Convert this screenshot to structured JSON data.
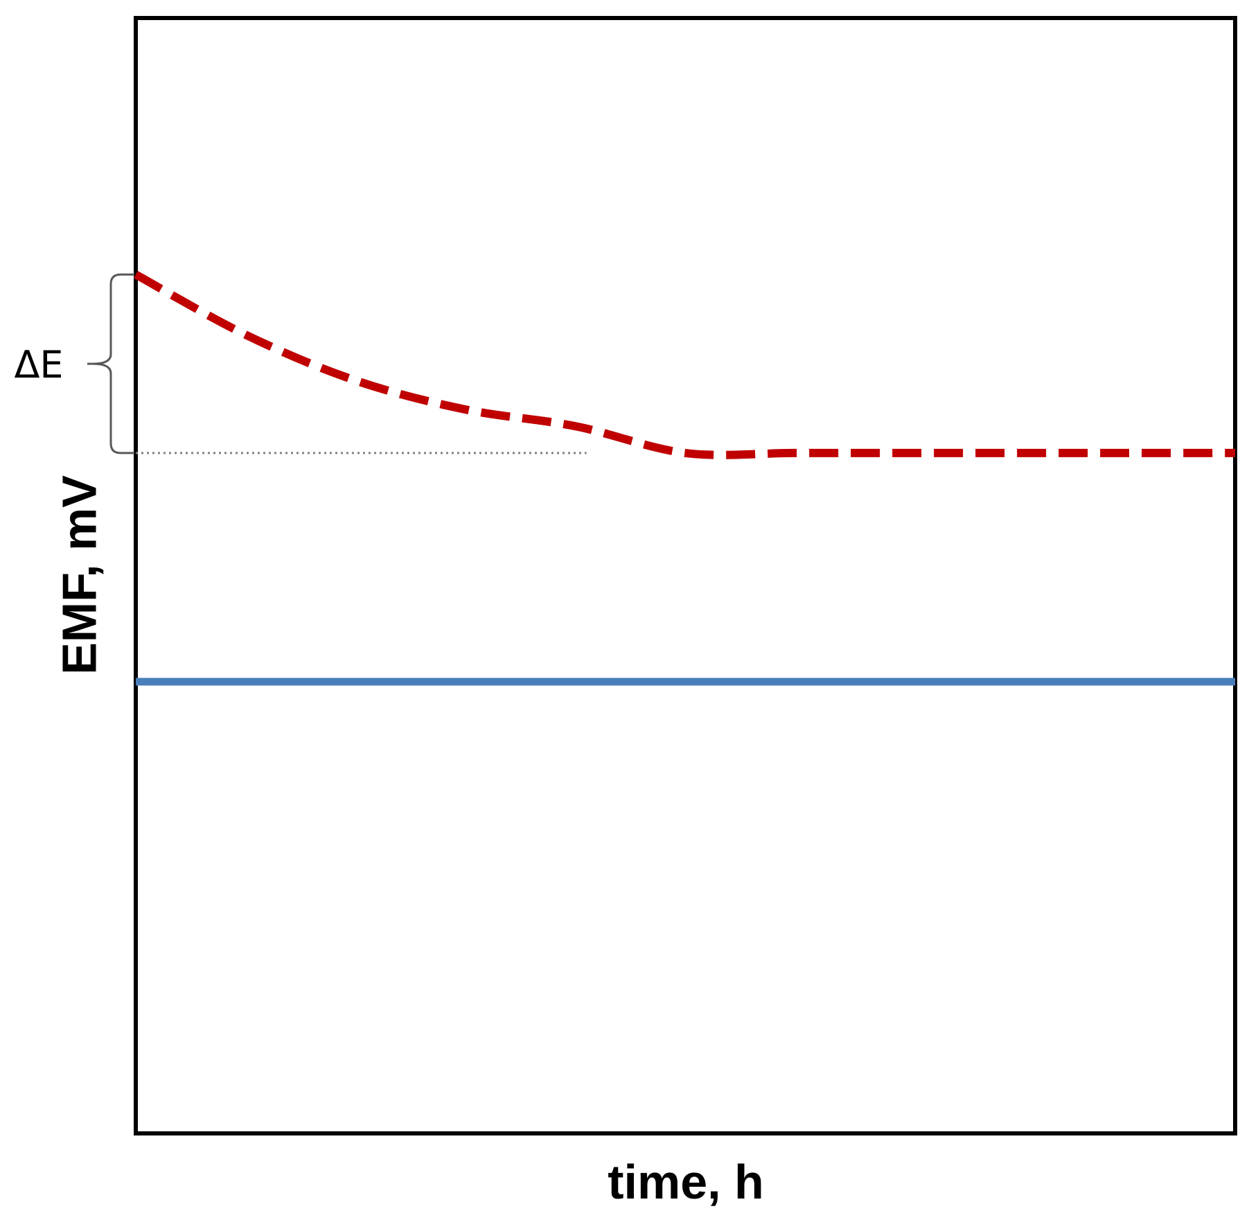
{
  "chart_data": {
    "type": "line",
    "title": "",
    "xlabel": "time, h",
    "ylabel": "EMF, mV",
    "x_ticks_shown": false,
    "y_ticks_shown": false,
    "grid": false,
    "legend": "none",
    "xlim": [
      0,
      10
    ],
    "ylim": [
      0,
      10
    ],
    "series": [
      {
        "style": "dashed",
        "color": "#c00000",
        "x": [
          0,
          1,
          2,
          3,
          4,
          5,
          6,
          7,
          8,
          9,
          10
        ],
        "y": [
          7.7,
          7.16,
          6.75,
          6.49,
          6.34,
          6.1,
          6.1,
          6.1,
          6.1,
          6.1,
          6.1
        ]
      },
      {
        "style": "solid",
        "color": "#4a7ebb",
        "x": [
          0,
          10
        ],
        "y": [
          4.05,
          4.05
        ]
      }
    ],
    "annotations": [
      {
        "text": "ΔE",
        "kind": "brace",
        "from_y": 7.7,
        "to_y": 6.1
      }
    ],
    "reference_lines": [
      {
        "style": "dotted",
        "color": "#808080",
        "y": 6.1,
        "x_from": 0,
        "x_to": 4.1
      }
    ]
  }
}
